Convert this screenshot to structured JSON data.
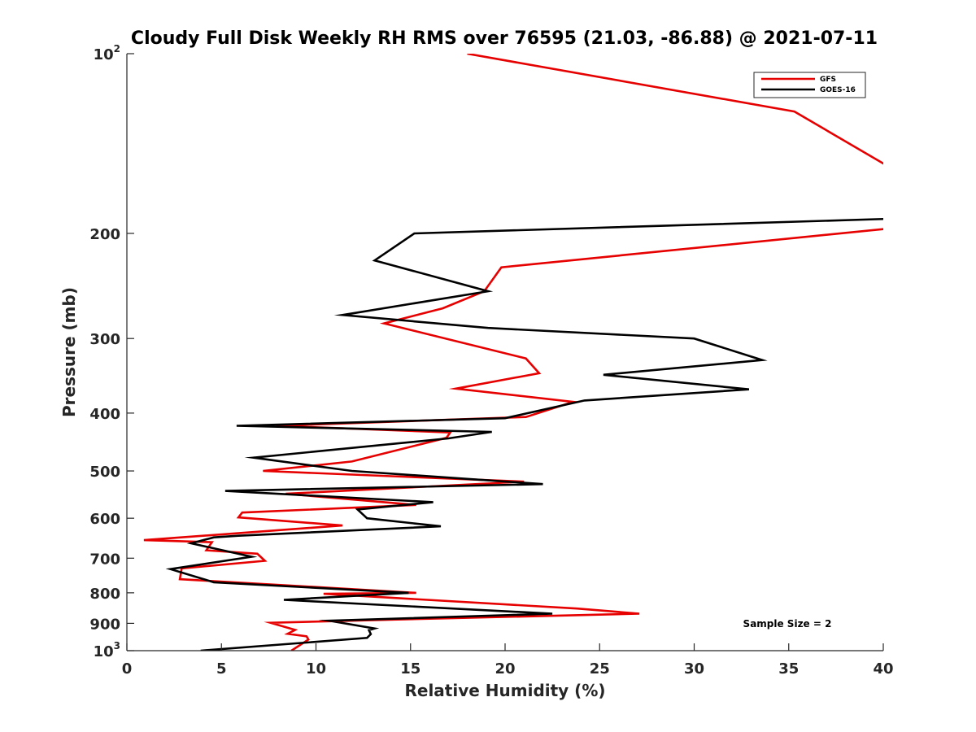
{
  "chart_data": {
    "type": "line",
    "title": "Cloudy Full Disk Weekly RH RMS over 76595 (21.03, -86.88) @ 2021-07-11",
    "xlabel": "Relative Humidity (%)",
    "ylabel": "Pressure (mb)",
    "xlim": [
      0,
      40
    ],
    "ylim": [
      100,
      1000
    ],
    "yscale": "log",
    "y_direction": "reversed",
    "grid": false,
    "x_ticks": [
      {
        "value": 0,
        "label": "0"
      },
      {
        "value": 5,
        "label": "5"
      },
      {
        "value": 10,
        "label": "10"
      },
      {
        "value": 15,
        "label": "15"
      },
      {
        "value": 20,
        "label": "20"
      },
      {
        "value": 25,
        "label": "25"
      },
      {
        "value": 30,
        "label": "30"
      },
      {
        "value": 35,
        "label": "35"
      },
      {
        "value": 40,
        "label": "40"
      }
    ],
    "y_ticks": [
      {
        "value": 100,
        "label": "10",
        "sup": "2"
      },
      {
        "value": 200,
        "label": "200"
      },
      {
        "value": 300,
        "label": "300"
      },
      {
        "value": 400,
        "label": "400"
      },
      {
        "value": 500,
        "label": "500"
      },
      {
        "value": 600,
        "label": "600"
      },
      {
        "value": 700,
        "label": "700"
      },
      {
        "value": 800,
        "label": "800"
      },
      {
        "value": 900,
        "label": "900"
      },
      {
        "value": 1000,
        "label": "10",
        "sup": "3"
      }
    ],
    "legend_position": "top-right",
    "annotation": "Sample Size = 2",
    "series": [
      {
        "name": "GFS",
        "color": "#e60000",
        "points": [
          [
            18.0,
            100
          ],
          [
            35.3,
            125
          ],
          [
            40.5,
            156
          ],
          [
            40.5,
            196
          ],
          [
            19.8,
            228
          ],
          [
            18.9,
            250
          ],
          [
            16.7,
            267
          ],
          [
            13.6,
            283
          ],
          [
            21.1,
            324
          ],
          [
            21.8,
            343
          ],
          [
            17.4,
            364
          ],
          [
            23.6,
            383
          ],
          [
            21.1,
            406
          ],
          [
            7.9,
            420
          ],
          [
            17.1,
            431
          ],
          [
            16.9,
            440
          ],
          [
            11.9,
            482
          ],
          [
            7.2,
            500
          ],
          [
            21.0,
            521
          ],
          [
            8.4,
            546
          ],
          [
            15.3,
            570
          ],
          [
            6.1,
            587
          ],
          [
            5.9,
            598
          ],
          [
            11.4,
            617
          ],
          [
            0.9,
            653
          ],
          [
            4.5,
            658
          ],
          [
            4.2,
            679
          ],
          [
            6.9,
            688
          ],
          [
            7.3,
            707
          ],
          [
            2.9,
            728
          ],
          [
            2.8,
            759
          ],
          [
            15.3,
            800
          ],
          [
            10.4,
            803
          ],
          [
            23.8,
            850
          ],
          [
            27.1,
            867
          ],
          [
            14.1,
            887
          ],
          [
            7.6,
            898
          ],
          [
            8.9,
            923
          ],
          [
            8.5,
            937
          ],
          [
            9.5,
            946
          ],
          [
            9.6,
            958
          ],
          [
            8.7,
            1000
          ]
        ]
      },
      {
        "name": "GOES-16",
        "color": "#000000",
        "points": [
          [
            40.5,
            189
          ],
          [
            15.2,
            200
          ],
          [
            13.1,
            222
          ],
          [
            19.1,
            250
          ],
          [
            11.4,
            274
          ],
          [
            19.1,
            288
          ],
          [
            30.0,
            300
          ],
          [
            33.6,
            326
          ],
          [
            25.2,
            345
          ],
          [
            32.9,
            365
          ],
          [
            24.2,
            381
          ],
          [
            20.0,
            408
          ],
          [
            5.8,
            420
          ],
          [
            19.3,
            430
          ],
          [
            17.0,
            441
          ],
          [
            6.7,
            475
          ],
          [
            11.9,
            500
          ],
          [
            22.0,
            526
          ],
          [
            5.2,
            540
          ],
          [
            16.2,
            564
          ],
          [
            12.2,
            580
          ],
          [
            12.7,
            600
          ],
          [
            16.6,
            619
          ],
          [
            5.9,
            642
          ],
          [
            4.6,
            646
          ],
          [
            3.4,
            661
          ],
          [
            6.6,
            696
          ],
          [
            2.3,
            730
          ],
          [
            4.6,
            768
          ],
          [
            14.9,
            800
          ],
          [
            8.3,
            822
          ],
          [
            22.5,
            867
          ],
          [
            10.7,
            891
          ],
          [
            13.1,
            918
          ],
          [
            12.8,
            924
          ],
          [
            12.9,
            938
          ],
          [
            12.7,
            952
          ],
          [
            3.9,
            1000
          ]
        ]
      }
    ]
  }
}
